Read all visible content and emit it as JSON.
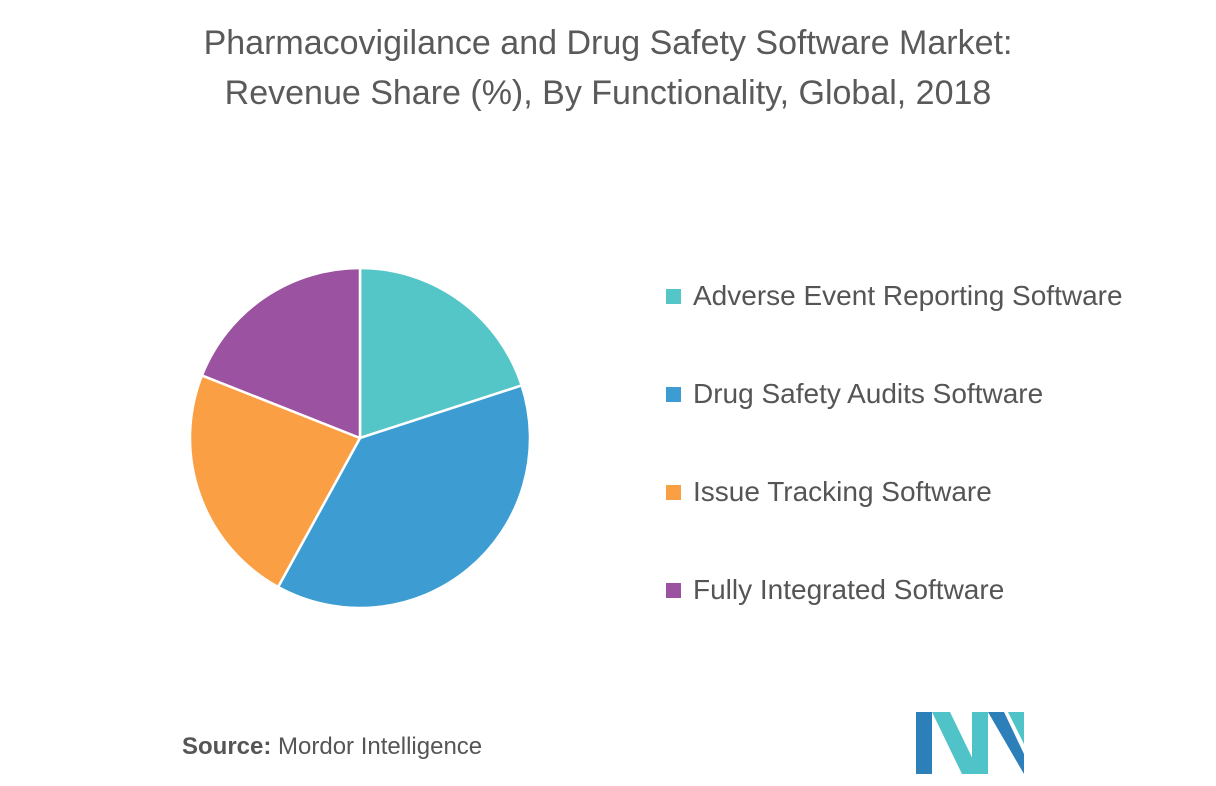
{
  "chart_data": {
    "type": "pie",
    "title": "Pharmacovigilance and Drug Safety Software Market:",
    "subtitle": "Revenue Share (%), By  Functionality, Global, 2018",
    "categories": [
      "Adverse Event Reporting Software",
      "Drug Safety Audits Software",
      "Issue Tracking Software",
      "Fully Integrated Software"
    ],
    "values": [
      20,
      38,
      23,
      19
    ],
    "colors": [
      "#55c6c8",
      "#3d9dd3",
      "#fb9f45",
      "#9b52a1"
    ],
    "start_angle_deg": 0,
    "direction": "clockwise",
    "legend_position": "right"
  },
  "source": {
    "label": "Source:",
    "text": "Mordor Intelligence"
  },
  "logo": {
    "colors": [
      "#2c7fb8",
      "#4fc3c8"
    ]
  }
}
